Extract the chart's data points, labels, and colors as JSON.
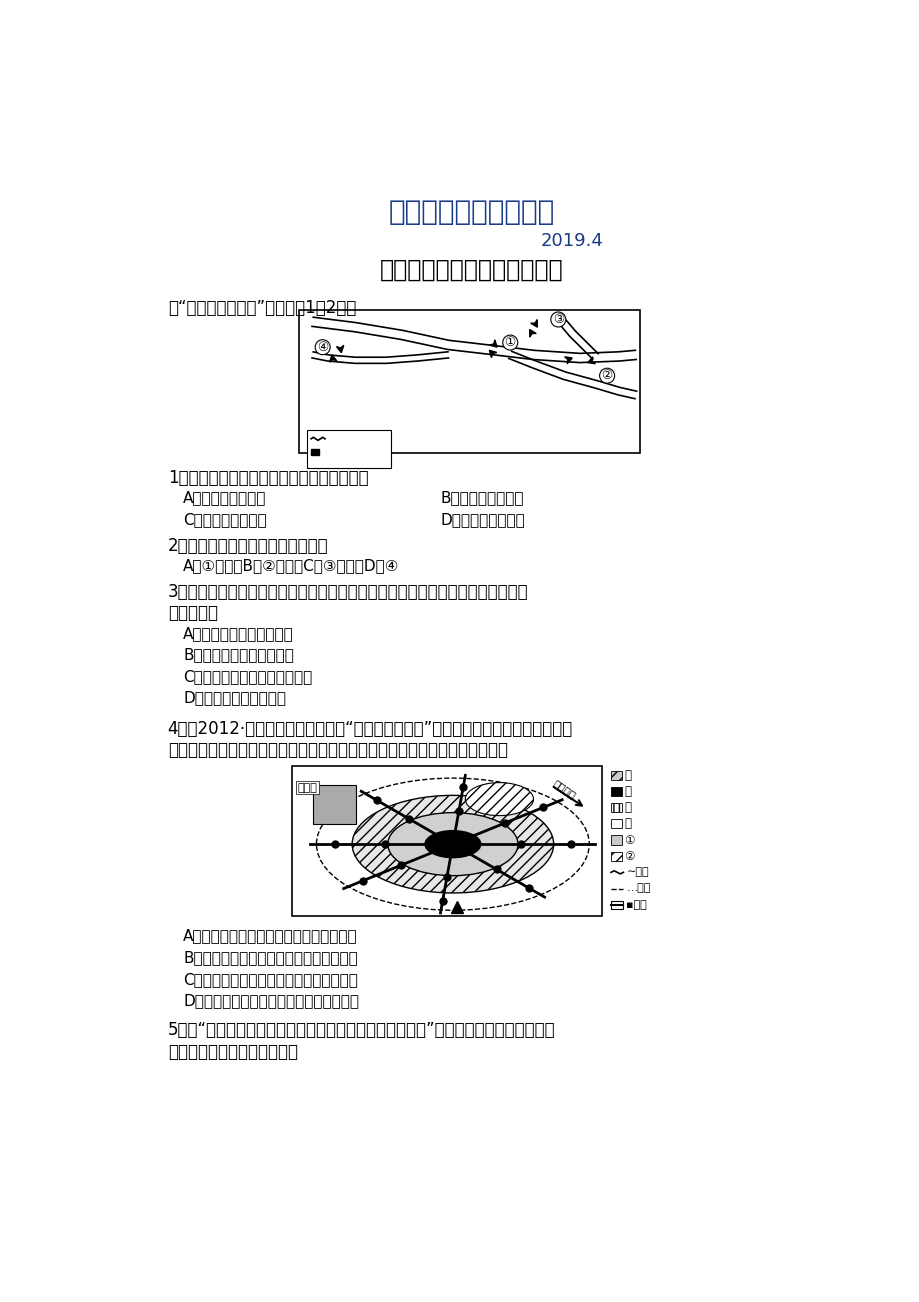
{
  "title1": "最新地理精品教学资料",
  "title2": "2019.4",
  "title3": "第一节　　城市空间结构练习",
  "intro": "读“某地区域分布图”，完成第1～2题。",
  "q1": "1．该地区形态及影响因素分别是（　　）。",
  "q1a": "A．团状、河流因素",
  "q1b": "B．团状、地形因素",
  "q1c": "C．带状、气候因素",
  "q1d": "D．带状、河流因素",
  "q2": "2．最早发展成城市的是（　　）。",
  "q2abcd": "A．①　　　B．②　　　C．③　　　D．④",
  "q3_line1": "3．下列各组城市的排序，依次作为宗教圣地、矿产地和政治中心而兴起的一组是",
  "q3_line2": "（　　）。",
  "q3a": "A．拉萨、攀枝花、华盛顿",
  "q3b": "B．耶路撒冷、大同、十堰",
  "q3c": "C．伊斯兰堡、大庆、巴西利亚",
  "q3d": "D．麦加、宝鸡、堪培拉",
  "q4_line1": "4．（2012·山东青岛高一检测）读“某大城市示意图”（仅列出部分功能区，不包括全",
  "q4_line2": "部），甲、乙、丙、丁分别表示某种功能区，下列与其相对应的是（　　）。",
  "q4a": "A．中心商务区　商业区　住宅区　工业区",
  "q4b": "B．商业区　中心商务区　工业区　住宅区",
  "q4c": "C．中心商务区　住宅区　商业区　工业区",
  "q4d": "D．中心商务区　工业区　住宅区　商业区",
  "q5_line1": "5．读“某城市某功能区内的地铁分时段日均客运量统计图”，根据客流量的时段统计，",
  "q5_line2": "该功能区最可能是（　　）。",
  "title1_color": "#1a3a8a",
  "title2_color": "#1a3a8a",
  "text_color": "#000000",
  "bg_color": "#ffffff"
}
